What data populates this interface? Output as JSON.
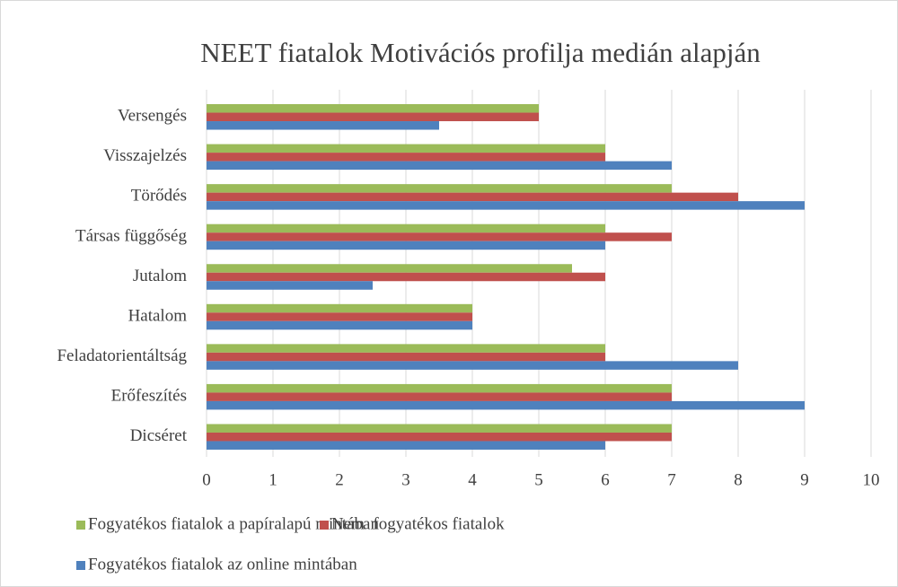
{
  "chart_data": {
    "type": "hbar",
    "title": "NEET fiatalok Motivációs profilja medián alapján",
    "categories": [
      "Versengés",
      "Visszajelzés",
      "Törődés",
      "Társas függőség",
      "Jutalom",
      "Hatalom",
      "Feladatorientáltság",
      "Erőfeszítés",
      "Dicséret"
    ],
    "series": [
      {
        "name": "Fogyatékos fiatalok a papíralapú mintában",
        "color": "#9bbb59",
        "values": [
          5,
          6,
          7,
          6,
          5.5,
          4,
          6,
          7,
          7
        ]
      },
      {
        "name": "Nem  fogyatékos fiatalok",
        "color": "#c0504d",
        "values": [
          5,
          6,
          8,
          7,
          6,
          4,
          6,
          7,
          7
        ]
      },
      {
        "name": "Fogyatékos fiatalok az online mintában",
        "color": "#4f81bd",
        "values": [
          3.5,
          7,
          9,
          6,
          2.5,
          4,
          8,
          9,
          6
        ]
      }
    ],
    "xlim": [
      0,
      10
    ],
    "xticks": [
      0,
      1,
      2,
      3,
      4,
      5,
      6,
      7,
      8,
      9,
      10
    ],
    "grid": true
  }
}
